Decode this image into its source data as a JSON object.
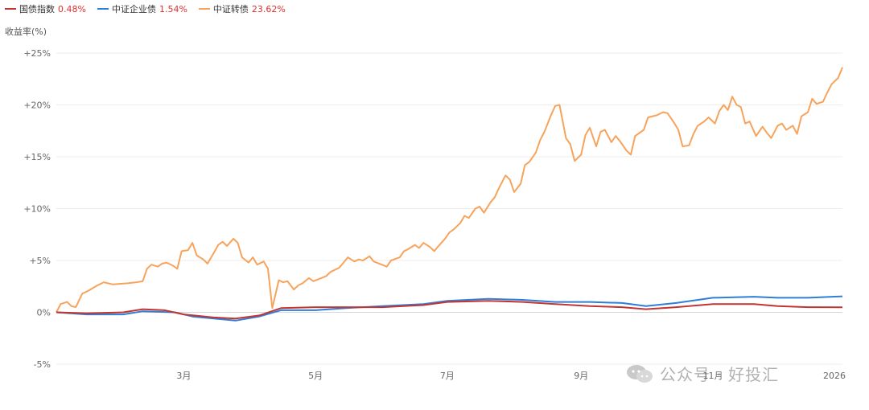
{
  "legend": [
    {
      "name": "国债指数",
      "value": "0.48%",
      "color": "#c23531"
    },
    {
      "name": "中证企业债",
      "value": "1.54%",
      "color": "#2f7ed8"
    },
    {
      "name": "中证转债",
      "value": "23.62%",
      "color": "#f7a35c"
    }
  ],
  "ylabel": "收益率(%)",
  "watermark": "公众号 · 好投汇",
  "chart_data": {
    "type": "line",
    "ylabel": "收益率(%)",
    "ylim": [
      -5,
      25
    ],
    "yticks": [
      -5,
      0,
      5,
      10,
      15,
      20,
      25
    ],
    "ytick_labels": [
      "-5%",
      "0%",
      "+5%",
      "+10%",
      "+15%",
      "+20%",
      "+25%"
    ],
    "xlim": [
      "2025-01-01",
      "2025-12-31"
    ],
    "xticks": [
      "2025-03-01",
      "2025-05-01",
      "2025-07-01",
      "2025-09-01",
      "2025-11-01",
      "2026-01-01"
    ],
    "xtick_labels": [
      "3月",
      "5月",
      "7月",
      "9月",
      "11月",
      "2026"
    ],
    "grid": true,
    "legend_position": "top-left",
    "series": [
      {
        "name": "中证转债",
        "color": "#f7a35c",
        "points": [
          [
            "2025-01-01",
            0
          ],
          [
            "2025-01-03",
            0.8
          ],
          [
            "2025-01-06",
            1.0
          ],
          [
            "2025-01-08",
            0.6
          ],
          [
            "2025-01-10",
            0.5
          ],
          [
            "2025-01-13",
            1.8
          ],
          [
            "2025-01-16",
            2.1
          ],
          [
            "2025-01-20",
            2.6
          ],
          [
            "2025-01-23",
            2.9
          ],
          [
            "2025-01-27",
            2.7
          ],
          [
            "2025-02-03",
            2.8
          ],
          [
            "2025-02-07",
            2.9
          ],
          [
            "2025-02-10",
            3.0
          ],
          [
            "2025-02-12",
            4.2
          ],
          [
            "2025-02-14",
            4.6
          ],
          [
            "2025-02-17",
            4.4
          ],
          [
            "2025-02-19",
            4.7
          ],
          [
            "2025-02-21",
            4.8
          ],
          [
            "2025-02-24",
            4.5
          ],
          [
            "2025-02-26",
            4.2
          ],
          [
            "2025-02-28",
            5.9
          ],
          [
            "2025-03-03",
            6.0
          ],
          [
            "2025-03-05",
            6.7
          ],
          [
            "2025-03-07",
            5.5
          ],
          [
            "2025-03-10",
            5.1
          ],
          [
            "2025-03-12",
            4.7
          ],
          [
            "2025-03-14",
            5.4
          ],
          [
            "2025-03-17",
            6.5
          ],
          [
            "2025-03-19",
            6.8
          ],
          [
            "2025-03-21",
            6.4
          ],
          [
            "2025-03-24",
            7.1
          ],
          [
            "2025-03-26",
            6.7
          ],
          [
            "2025-03-28",
            5.3
          ],
          [
            "2025-03-31",
            4.8
          ],
          [
            "2025-04-02",
            5.3
          ],
          [
            "2025-04-04",
            4.6
          ],
          [
            "2025-04-07",
            4.9
          ],
          [
            "2025-04-09",
            4.2
          ],
          [
            "2025-04-11",
            0.4
          ],
          [
            "2025-04-14",
            3.1
          ],
          [
            "2025-04-16",
            2.9
          ],
          [
            "2025-04-18",
            3.0
          ],
          [
            "2025-04-21",
            2.2
          ],
          [
            "2025-04-23",
            2.6
          ],
          [
            "2025-04-25",
            2.8
          ],
          [
            "2025-04-28",
            3.3
          ],
          [
            "2025-04-30",
            3.0
          ],
          [
            "2025-05-06",
            3.5
          ],
          [
            "2025-05-08",
            3.9
          ],
          [
            "2025-05-12",
            4.3
          ],
          [
            "2025-05-14",
            4.8
          ],
          [
            "2025-05-16",
            5.3
          ],
          [
            "2025-05-19",
            4.9
          ],
          [
            "2025-05-21",
            5.1
          ],
          [
            "2025-05-23",
            5.0
          ],
          [
            "2025-05-26",
            5.4
          ],
          [
            "2025-05-28",
            4.9
          ],
          [
            "2025-06-03",
            4.4
          ],
          [
            "2025-06-05",
            5.0
          ],
          [
            "2025-06-09",
            5.3
          ],
          [
            "2025-06-11",
            5.9
          ],
          [
            "2025-06-13",
            6.1
          ],
          [
            "2025-06-16",
            6.5
          ],
          [
            "2025-06-18",
            6.2
          ],
          [
            "2025-06-20",
            6.7
          ],
          [
            "2025-06-23",
            6.3
          ],
          [
            "2025-06-25",
            5.9
          ],
          [
            "2025-06-27",
            6.4
          ],
          [
            "2025-06-30",
            7.1
          ],
          [
            "2025-07-02",
            7.7
          ],
          [
            "2025-07-04",
            8.0
          ],
          [
            "2025-07-07",
            8.6
          ],
          [
            "2025-07-09",
            9.3
          ],
          [
            "2025-07-11",
            9.1
          ],
          [
            "2025-07-14",
            10.0
          ],
          [
            "2025-07-16",
            10.2
          ],
          [
            "2025-07-18",
            9.6
          ],
          [
            "2025-07-21",
            10.6
          ],
          [
            "2025-07-23",
            11.1
          ],
          [
            "2025-07-25",
            12.0
          ],
          [
            "2025-07-28",
            13.2
          ],
          [
            "2025-07-30",
            12.8
          ],
          [
            "2025-08-01",
            11.6
          ],
          [
            "2025-08-04",
            12.4
          ],
          [
            "2025-08-06",
            14.2
          ],
          [
            "2025-08-08",
            14.5
          ],
          [
            "2025-08-11",
            15.4
          ],
          [
            "2025-08-13",
            16.6
          ],
          [
            "2025-08-15",
            17.4
          ],
          [
            "2025-08-18",
            19.0
          ],
          [
            "2025-08-20",
            19.9
          ],
          [
            "2025-08-22",
            20.0
          ],
          [
            "2025-08-25",
            16.8
          ],
          [
            "2025-08-27",
            16.2
          ],
          [
            "2025-08-29",
            14.6
          ],
          [
            "2025-09-01",
            15.2
          ],
          [
            "2025-09-03",
            17.1
          ],
          [
            "2025-09-05",
            17.8
          ],
          [
            "2025-09-08",
            16.0
          ],
          [
            "2025-09-10",
            17.4
          ],
          [
            "2025-09-12",
            17.6
          ],
          [
            "2025-09-15",
            16.4
          ],
          [
            "2025-09-17",
            17.0
          ],
          [
            "2025-09-19",
            16.5
          ],
          [
            "2025-09-22",
            15.6
          ],
          [
            "2025-09-24",
            15.2
          ],
          [
            "2025-09-26",
            17.0
          ],
          [
            "2025-09-30",
            17.6
          ],
          [
            "2025-10-02",
            18.8
          ],
          [
            "2025-10-06",
            19.0
          ],
          [
            "2025-10-09",
            19.3
          ],
          [
            "2025-10-11",
            19.2
          ],
          [
            "2025-10-14",
            18.3
          ],
          [
            "2025-10-16",
            17.6
          ],
          [
            "2025-10-18",
            16.0
          ],
          [
            "2025-10-21",
            16.1
          ],
          [
            "2025-10-23",
            17.2
          ],
          [
            "2025-10-25",
            18.0
          ],
          [
            "2025-10-28",
            18.4
          ],
          [
            "2025-10-30",
            18.8
          ],
          [
            "2025-11-02",
            18.2
          ],
          [
            "2025-11-04",
            19.4
          ],
          [
            "2025-11-06",
            20.0
          ],
          [
            "2025-11-08",
            19.5
          ],
          [
            "2025-11-10",
            20.8
          ],
          [
            "2025-11-12",
            20.0
          ],
          [
            "2025-11-14",
            19.8
          ],
          [
            "2025-11-16",
            18.2
          ],
          [
            "2025-11-18",
            18.4
          ],
          [
            "2025-11-21",
            17.0
          ],
          [
            "2025-11-24",
            17.9
          ],
          [
            "2025-11-26",
            17.3
          ],
          [
            "2025-11-28",
            16.8
          ],
          [
            "2025-12-01",
            18.0
          ],
          [
            "2025-12-03",
            18.2
          ],
          [
            "2025-12-05",
            17.6
          ],
          [
            "2025-12-08",
            18.0
          ],
          [
            "2025-12-10",
            17.2
          ],
          [
            "2025-12-12",
            18.9
          ],
          [
            "2025-12-15",
            19.3
          ],
          [
            "2025-12-17",
            20.6
          ],
          [
            "2025-12-19",
            20.1
          ],
          [
            "2025-12-22",
            20.3
          ],
          [
            "2025-12-24",
            21.2
          ],
          [
            "2025-12-26",
            22.0
          ],
          [
            "2025-12-29",
            22.6
          ],
          [
            "2025-12-31",
            23.62
          ]
        ]
      },
      {
        "name": "中证企业债",
        "color": "#2f7ed8",
        "points": [
          [
            "2025-01-01",
            0
          ],
          [
            "2025-01-15",
            -0.2
          ],
          [
            "2025-02-01",
            -0.2
          ],
          [
            "2025-02-10",
            0.1
          ],
          [
            "2025-02-25",
            0
          ],
          [
            "2025-03-05",
            -0.4
          ],
          [
            "2025-03-15",
            -0.6
          ],
          [
            "2025-03-25",
            -0.8
          ],
          [
            "2025-04-05",
            -0.4
          ],
          [
            "2025-04-15",
            0.2
          ],
          [
            "2025-05-01",
            0.2
          ],
          [
            "2025-05-15",
            0.4
          ],
          [
            "2025-06-01",
            0.6
          ],
          [
            "2025-06-20",
            0.8
          ],
          [
            "2025-07-01",
            1.1
          ],
          [
            "2025-07-20",
            1.3
          ],
          [
            "2025-08-05",
            1.2
          ],
          [
            "2025-08-20",
            1.0
          ],
          [
            "2025-09-05",
            1.0
          ],
          [
            "2025-09-20",
            0.9
          ],
          [
            "2025-10-01",
            0.6
          ],
          [
            "2025-10-15",
            0.9
          ],
          [
            "2025-11-01",
            1.4
          ],
          [
            "2025-11-20",
            1.5
          ],
          [
            "2025-12-01",
            1.4
          ],
          [
            "2025-12-15",
            1.4
          ],
          [
            "2025-12-31",
            1.54
          ]
        ]
      },
      {
        "name": "国债指数",
        "color": "#c23531",
        "points": [
          [
            "2025-01-01",
            0
          ],
          [
            "2025-01-15",
            -0.1
          ],
          [
            "2025-02-01",
            0
          ],
          [
            "2025-02-10",
            0.3
          ],
          [
            "2025-02-20",
            0.2
          ],
          [
            "2025-03-01",
            -0.2
          ],
          [
            "2025-03-15",
            -0.5
          ],
          [
            "2025-03-25",
            -0.6
          ],
          [
            "2025-04-05",
            -0.3
          ],
          [
            "2025-04-15",
            0.4
          ],
          [
            "2025-05-01",
            0.5
          ],
          [
            "2025-05-15",
            0.5
          ],
          [
            "2025-06-01",
            0.5
          ],
          [
            "2025-06-20",
            0.7
          ],
          [
            "2025-07-01",
            1.0
          ],
          [
            "2025-07-20",
            1.1
          ],
          [
            "2025-08-05",
            1.0
          ],
          [
            "2025-08-20",
            0.8
          ],
          [
            "2025-09-05",
            0.6
          ],
          [
            "2025-09-20",
            0.5
          ],
          [
            "2025-10-01",
            0.3
          ],
          [
            "2025-10-15",
            0.5
          ],
          [
            "2025-11-01",
            0.8
          ],
          [
            "2025-11-20",
            0.8
          ],
          [
            "2025-12-01",
            0.6
          ],
          [
            "2025-12-15",
            0.5
          ],
          [
            "2025-12-31",
            0.48
          ]
        ]
      }
    ]
  }
}
